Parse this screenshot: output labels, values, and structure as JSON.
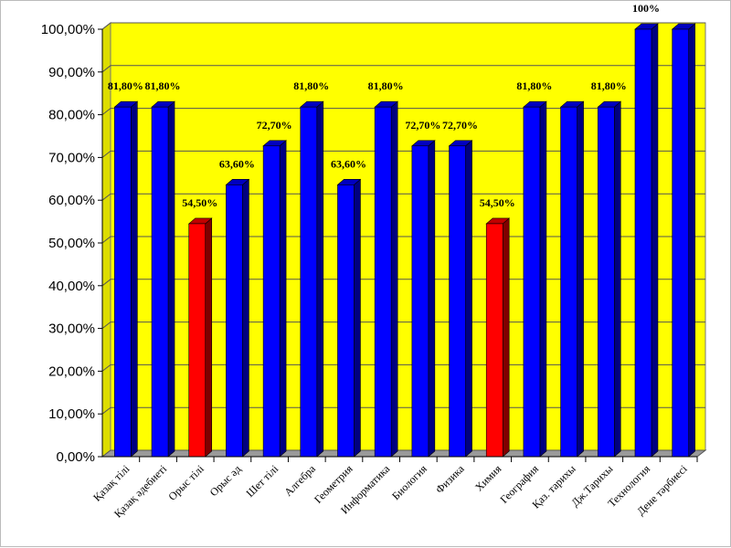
{
  "chart_data": {
    "type": "bar",
    "title": "",
    "xlabel": "",
    "ylabel": "",
    "ylim": [
      0,
      100
    ],
    "grid": true,
    "yticks": [
      "0,00%",
      "10,00%",
      "20,00%",
      "30,00%",
      "40,00%",
      "50,00%",
      "60,00%",
      "70,00%",
      "80,00%",
      "90,00%",
      "100,00%"
    ],
    "categories": [
      "Қазақ тілі",
      "Қазақ әдебиеті",
      "Орыс тілі",
      "Орыс әд",
      "Шет тілі",
      "Алгебра",
      "Геометрия",
      "Информатика",
      "Биология",
      "Физика",
      "Химия",
      "География",
      "Қаз. тарихы",
      "Дж.Тарихы",
      "Технология",
      "Дене тәрбиесі"
    ],
    "values": [
      81.8,
      81.8,
      54.5,
      63.6,
      72.7,
      81.8,
      63.6,
      81.8,
      72.7,
      72.7,
      54.5,
      81.8,
      81.8,
      81.8,
      100,
      100
    ],
    "data_labels": [
      "81,80%",
      "81,80%",
      "54,50%",
      "63,60%",
      "72,70%",
      "81,80%",
      "63,60%",
      "81,80%",
      "72,70%",
      "72,70%",
      "54,50%",
      "81,80%",
      "",
      "81,80%",
      "100%",
      ""
    ],
    "bar_colors": [
      "#0000FF",
      "#0000FF",
      "#FF0000",
      "#0000FF",
      "#0000FF",
      "#0000FF",
      "#0000FF",
      "#0000FF",
      "#0000FF",
      "#0000FF",
      "#FF0000",
      "#0000FF",
      "#0000FF",
      "#0000FF",
      "#0000FF",
      "#0000FF"
    ],
    "colors": {
      "wall": "#FFFF00",
      "floor": "#9A9A9A",
      "grid": "#555555"
    }
  }
}
